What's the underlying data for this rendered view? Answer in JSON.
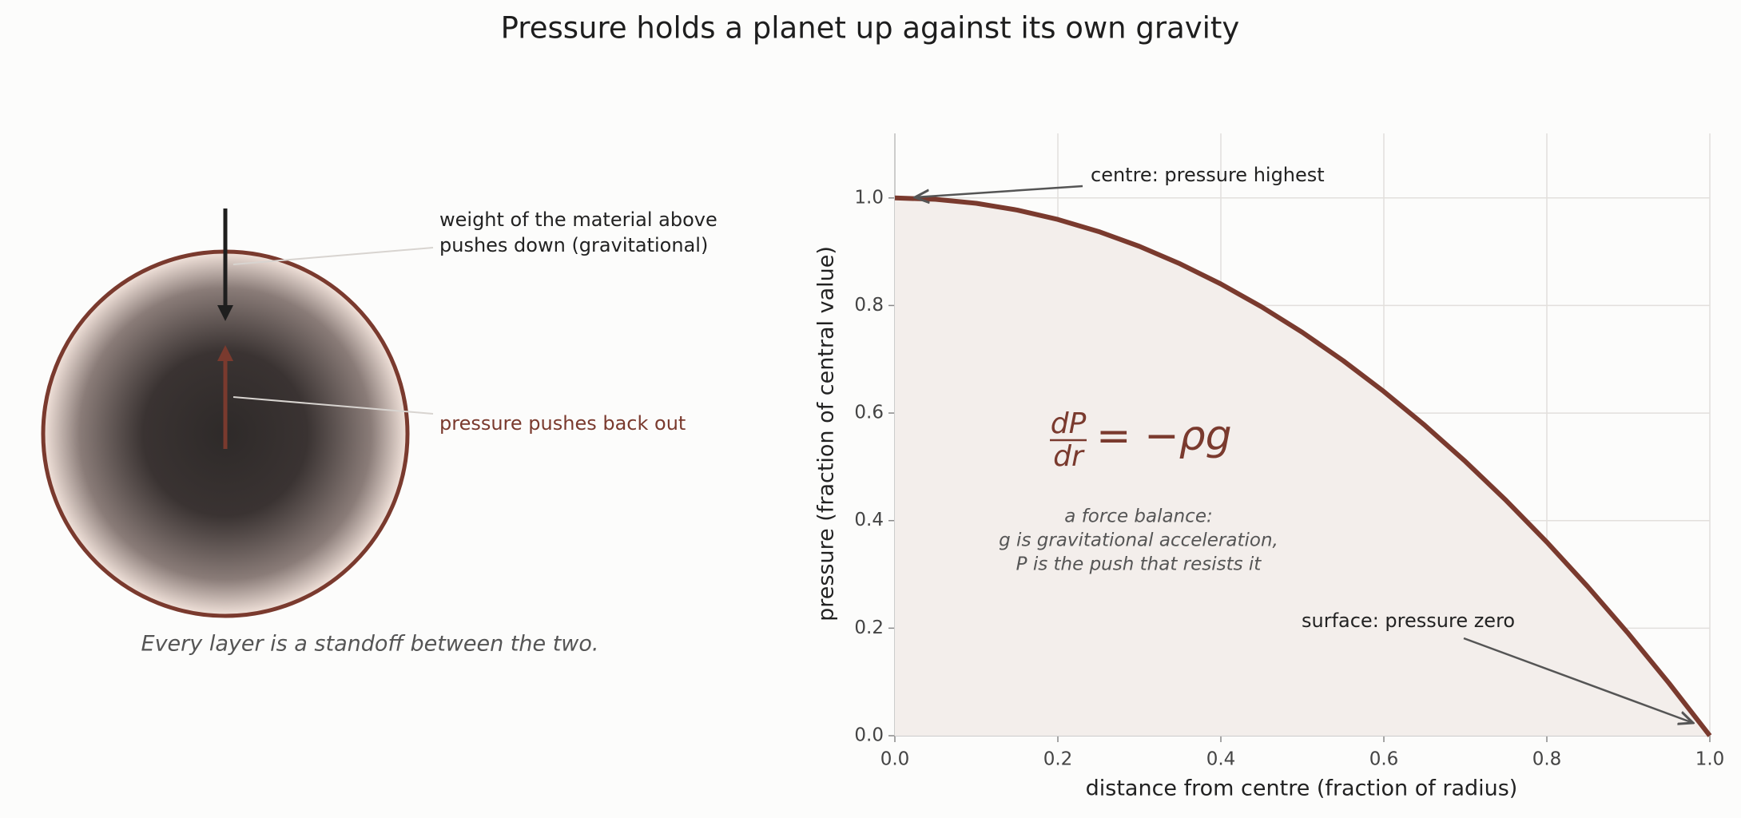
{
  "title": "Pressure holds a planet up against its own gravity",
  "diagram": {
    "weight_label": [
      "weight of the material above",
      "pushes down  (gravitational)"
    ],
    "pressure_label": "pressure pushes back out",
    "caption": "Every layer is a standoff between the two."
  },
  "chart_data": {
    "type": "line",
    "x_label": "distance from centre  (fraction of radius)",
    "y_label": "pressure  (fraction of central value)",
    "x": [
      0,
      0.05,
      0.1,
      0.15,
      0.2,
      0.25,
      0.3,
      0.35,
      0.4,
      0.45,
      0.5,
      0.55,
      0.6,
      0.65,
      0.7,
      0.75,
      0.8,
      0.85,
      0.9,
      0.95,
      1
    ],
    "values": [
      1,
      0.9975,
      0.99,
      0.9775,
      0.96,
      0.9375,
      0.91,
      0.8775,
      0.84,
      0.7975,
      0.75,
      0.6975,
      0.64,
      0.5775,
      0.51,
      0.4375,
      0.36,
      0.2775,
      0.19,
      0.0975,
      0
    ],
    "color": "#7a3a2e",
    "fill_color": "#f3eeeb",
    "xlim": [
      0,
      1
    ],
    "ylim": [
      0,
      1.12
    ],
    "xticks": [
      {
        "value": 0,
        "label": "0.0"
      },
      0.2,
      0.4,
      0.6,
      0.8,
      {
        "value": 1,
        "label": "1.0"
      }
    ],
    "yticks": [
      {
        "value": 0,
        "label": "0.0"
      },
      0.2,
      0.4,
      0.6,
      0.8,
      {
        "value": 1,
        "label": "1.0"
      }
    ],
    "grid": true,
    "annotations": [
      "centre: pressure highest",
      "surface: pressure zero"
    ],
    "equation": {
      "numerator": "dP",
      "denominator": "dr",
      "rhs": "= −ρg"
    },
    "note": [
      "a force balance:",
      "g is gravitational acceleration,",
      "P is the push that resists it"
    ]
  }
}
